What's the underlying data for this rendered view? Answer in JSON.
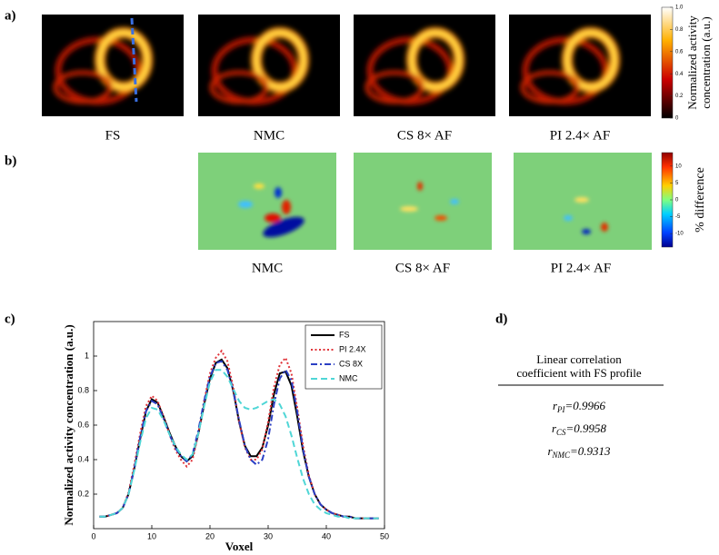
{
  "panel_a": {
    "label": "a)",
    "images": [
      "FS",
      "NMC",
      "CS 8× AF",
      "PI 2.4× AF"
    ],
    "colorbar": {
      "title": [
        "Normalized activity",
        "concentration (a.u.)"
      ],
      "lim": [
        0,
        1
      ],
      "ticks": [
        0,
        0.2,
        0.4,
        0.6,
        0.8,
        {
          "value": 1,
          "label": "1.0"
        }
      ]
    }
  },
  "panel_b": {
    "label": "b)",
    "images": [
      "NMC",
      "CS 8× AF",
      "PI 2.4× AF"
    ],
    "colorbar": {
      "title": [
        "% difference"
      ],
      "lim": [
        -14,
        14
      ],
      "ticks": [
        10,
        5,
        0,
        -5,
        -10
      ]
    }
  },
  "panel_c": {
    "label": "c)"
  },
  "chart_data": {
    "type": "line",
    "xlabel": "Voxel",
    "ylabel": "Normalized activity concentration (a.u.)",
    "x": [
      1,
      2,
      3,
      4,
      5,
      6,
      7,
      8,
      9,
      10,
      11,
      12,
      13,
      14,
      15,
      16,
      17,
      18,
      19,
      20,
      21,
      22,
      23,
      24,
      25,
      26,
      27,
      28,
      29,
      30,
      31,
      32,
      33,
      34,
      35,
      36,
      37,
      38,
      39,
      40,
      41,
      42,
      43,
      44,
      45,
      46,
      47,
      48,
      49
    ],
    "xlim": [
      0,
      50
    ],
    "xticks": [
      0,
      10,
      20,
      30,
      40,
      50
    ],
    "ylim": [
      0,
      1.2
    ],
    "yticks": [
      0.2,
      0.4,
      0.6,
      0.8,
      1
    ],
    "legend": "upper right",
    "series": [
      {
        "name": "FS",
        "color": "#000000",
        "style": "solid",
        "values": [
          0.07,
          0.07,
          0.08,
          0.09,
          0.12,
          0.2,
          0.35,
          0.52,
          0.68,
          0.75,
          0.73,
          0.65,
          0.56,
          0.48,
          0.42,
          0.39,
          0.42,
          0.55,
          0.72,
          0.87,
          0.96,
          0.98,
          0.93,
          0.8,
          0.62,
          0.48,
          0.42,
          0.42,
          0.47,
          0.6,
          0.78,
          0.9,
          0.91,
          0.83,
          0.65,
          0.45,
          0.3,
          0.2,
          0.14,
          0.11,
          0.09,
          0.08,
          0.07,
          0.07,
          0.06,
          0.06,
          0.06,
          0.06,
          0.06
        ]
      },
      {
        "name": "PI 2.4X",
        "color": "#e0343a",
        "style": "dotted",
        "values": [
          0.07,
          0.07,
          0.08,
          0.09,
          0.12,
          0.21,
          0.37,
          0.55,
          0.71,
          0.77,
          0.74,
          0.65,
          0.55,
          0.46,
          0.4,
          0.36,
          0.4,
          0.55,
          0.74,
          0.9,
          0.99,
          1.03,
          0.97,
          0.82,
          0.62,
          0.47,
          0.4,
          0.4,
          0.46,
          0.62,
          0.82,
          0.95,
          0.99,
          0.9,
          0.7,
          0.48,
          0.31,
          0.2,
          0.14,
          0.11,
          0.09,
          0.08,
          0.07,
          0.07,
          0.06,
          0.06,
          0.06,
          0.06,
          0.06
        ]
      },
      {
        "name": "CS 8X",
        "color": "#2b3fc4",
        "style": "dashdot",
        "values": [
          0.07,
          0.07,
          0.08,
          0.09,
          0.12,
          0.2,
          0.35,
          0.53,
          0.68,
          0.74,
          0.72,
          0.64,
          0.55,
          0.47,
          0.42,
          0.39,
          0.43,
          0.57,
          0.74,
          0.88,
          0.96,
          0.97,
          0.92,
          0.8,
          0.63,
          0.48,
          0.4,
          0.37,
          0.4,
          0.52,
          0.72,
          0.87,
          0.92,
          0.86,
          0.68,
          0.46,
          0.3,
          0.2,
          0.14,
          0.11,
          0.09,
          0.08,
          0.07,
          0.07,
          0.06,
          0.06,
          0.06,
          0.06,
          0.06
        ]
      },
      {
        "name": "NMC",
        "color": "#4fd6d6",
        "style": "dashed",
        "values": [
          0.07,
          0.07,
          0.08,
          0.09,
          0.12,
          0.2,
          0.34,
          0.5,
          0.64,
          0.7,
          0.69,
          0.63,
          0.55,
          0.48,
          0.43,
          0.4,
          0.43,
          0.55,
          0.71,
          0.85,
          0.92,
          0.92,
          0.88,
          0.81,
          0.74,
          0.7,
          0.69,
          0.7,
          0.72,
          0.74,
          0.75,
          0.72,
          0.65,
          0.54,
          0.41,
          0.29,
          0.2,
          0.14,
          0.11,
          0.09,
          0.08,
          0.07,
          0.07,
          0.06,
          0.06,
          0.06,
          0.06,
          0.06,
          0.06
        ]
      }
    ]
  },
  "panel_d": {
    "label": "d)",
    "header": [
      "Linear correlation",
      "coefficient with FS profile"
    ],
    "rows": [
      {
        "symbol": "r",
        "sub": "PI",
        "value": "=0.9966"
      },
      {
        "symbol": "r",
        "sub": "CS",
        "value": "=0.9958"
      },
      {
        "symbol": "r",
        "sub": "NMC",
        "value": "=0.9313"
      }
    ]
  }
}
